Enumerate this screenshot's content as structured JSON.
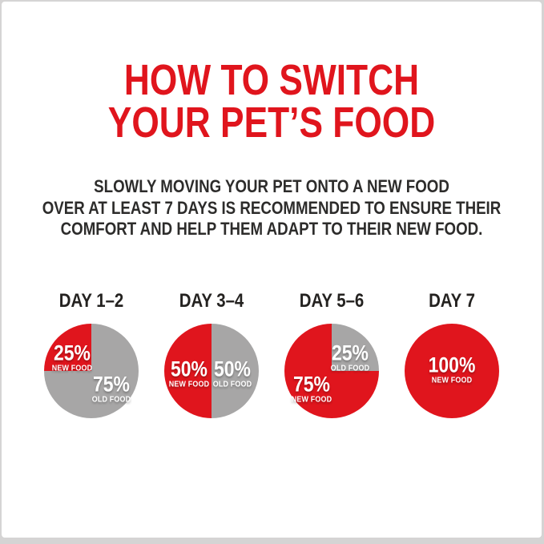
{
  "frame": {
    "background": "#d5d4d4",
    "card_background": "#ffffff"
  },
  "title": {
    "line1": "HOW TO SWITCH",
    "line2": "YOUR PET’S FOOD",
    "color": "#e0151d"
  },
  "intro": {
    "line1": "SLOWLY MOVING YOUR PET ONTO A NEW FOOD",
    "line2": "OVER AT LEAST 7 DAYS IS RECOMMENDED TO ENSURE THEIR",
    "line3": "COMFORT AND HELP THEM ADAPT TO THEIR NEW FOOD.",
    "color": "#2d2c2b"
  },
  "colors": {
    "new_food": "#e0151d",
    "old_food": "#a7a6a6",
    "slice_text": "#ffffff"
  },
  "chart_data": [
    {
      "type": "pie",
      "title": "DAY 1–2",
      "slice_order": "clockwise-from-top",
      "slices": [
        {
          "label": "OLD FOOD",
          "pct": "75%",
          "value": 75,
          "color": "#a7a6a6"
        },
        {
          "label": "NEW FOOD",
          "pct": "25%",
          "value": 25,
          "color": "#e0151d"
        }
      ]
    },
    {
      "type": "pie",
      "title": "DAY 3–4",
      "slice_order": "clockwise-from-top",
      "slices": [
        {
          "label": "OLD FOOD",
          "pct": "50%",
          "value": 50,
          "color": "#a7a6a6"
        },
        {
          "label": "NEW FOOD",
          "pct": "50%",
          "value": 50,
          "color": "#e0151d"
        }
      ]
    },
    {
      "type": "pie",
      "title": "DAY 5–6",
      "slice_order": "clockwise-from-top",
      "slices": [
        {
          "label": "OLD FOOD",
          "pct": "25%",
          "value": 25,
          "color": "#a7a6a6"
        },
        {
          "label": "NEW FOOD",
          "pct": "75%",
          "value": 75,
          "color": "#e0151d"
        }
      ]
    },
    {
      "type": "pie",
      "title": "DAY 7",
      "slice_order": "clockwise-from-top",
      "slices": [
        {
          "label": "NEW FOOD",
          "pct": "100%",
          "value": 100,
          "color": "#e0151d"
        }
      ]
    }
  ]
}
